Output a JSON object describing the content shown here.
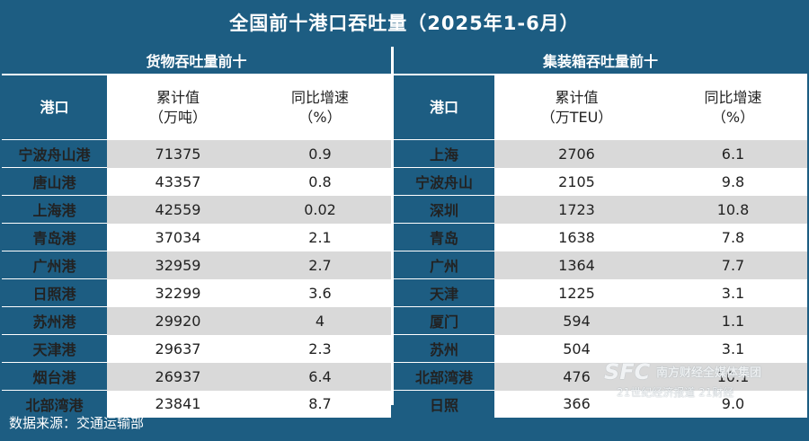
{
  "title": "全国前十港口吞吐量（2025年1-6月）",
  "cargo": {
    "section_title": "货物吞吐量前十",
    "headers": {
      "port": "港口",
      "cum_line1": "累计值",
      "cum_line2": "（万吨）",
      "yoy_line1": "同比增速",
      "yoy_line2": "（%）"
    },
    "rows": [
      {
        "port": "宁波舟山港",
        "cum": "71375",
        "yoy": "0.9"
      },
      {
        "port": "唐山港",
        "cum": "43357",
        "yoy": "0.8"
      },
      {
        "port": "上海港",
        "cum": "42559",
        "yoy": "0.02"
      },
      {
        "port": "青岛港",
        "cum": "37034",
        "yoy": "2.1"
      },
      {
        "port": "广州港",
        "cum": "32959",
        "yoy": "2.7"
      },
      {
        "port": "日照港",
        "cum": "32299",
        "yoy": "3.6"
      },
      {
        "port": "苏州港",
        "cum": "29920",
        "yoy": "4"
      },
      {
        "port": "天津港",
        "cum": "29637",
        "yoy": "2.3"
      },
      {
        "port": "烟台港",
        "cum": "26937",
        "yoy": "6.4"
      },
      {
        "port": "北部湾港",
        "cum": "23841",
        "yoy": "8.7"
      }
    ]
  },
  "container": {
    "section_title": "集装箱吞吐量前十",
    "headers": {
      "port": "港口",
      "cum_line1": "累计值",
      "cum_line2": "（万TEU）",
      "yoy_line1": "同比增速",
      "yoy_line2": "（%）"
    },
    "rows": [
      {
        "port": "上海",
        "cum": "2706",
        "yoy": "6.1"
      },
      {
        "port": "宁波舟山",
        "cum": "2105",
        "yoy": "9.8"
      },
      {
        "port": "深圳",
        "cum": "1723",
        "yoy": "10.8"
      },
      {
        "port": "青岛",
        "cum": "1638",
        "yoy": "7.8"
      },
      {
        "port": "广州",
        "cum": "1364",
        "yoy": "7.7"
      },
      {
        "port": "天津",
        "cum": "1225",
        "yoy": "3.1"
      },
      {
        "port": "厦门",
        "cum": "594",
        "yoy": "1.1"
      },
      {
        "port": "苏州",
        "cum": "504",
        "yoy": "3.1"
      },
      {
        "port": "北部湾港",
        "cum": "476",
        "yoy": "10.1"
      },
      {
        "port": "日照",
        "cum": "366",
        "yoy": "9.0"
      }
    ]
  },
  "footer": "数据来源：交通运输部",
  "watermark": {
    "logo": "SFC",
    "line1": "南方财经全媒体集团",
    "line2": "21世纪经济报道 21财经"
  },
  "colors": {
    "header_blue": "#1d5d82",
    "row_gray": "#d9d9d9",
    "text": "#222222"
  }
}
